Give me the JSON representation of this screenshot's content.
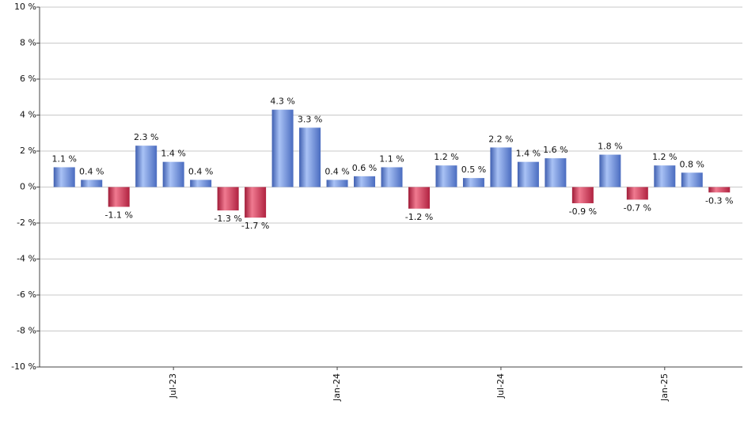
{
  "chart_data": {
    "type": "bar",
    "categories": [
      null,
      null,
      null,
      null,
      "Jul-23",
      null,
      null,
      null,
      null,
      null,
      "Jan-24",
      null,
      null,
      null,
      null,
      null,
      "Jul-24",
      null,
      null,
      null,
      null,
      null,
      "Jan-25",
      null,
      null
    ],
    "values": [
      1.1,
      0.4,
      -1.1,
      2.3,
      1.4,
      0.4,
      -1.3,
      -1.7,
      4.3,
      3.3,
      0.4,
      0.6,
      1.1,
      -1.2,
      1.2,
      0.5,
      2.2,
      1.4,
      1.6,
      -0.9,
      1.8,
      -0.7,
      1.2,
      0.8,
      -0.3
    ],
    "value_labels": [
      "1.1 %",
      "0.4 %",
      "-1.1 %",
      "2.3 %",
      "1.4 %",
      "0.4 %",
      "-1.3 %",
      "-1.7 %",
      "4.3 %",
      "3.3 %",
      "0.4 %",
      "0.6 %",
      "1.1 %",
      "-1.2 %",
      "1.2 %",
      "0.5 %",
      "2.2 %",
      "1.4 %",
      "1.6 %",
      "-0.9 %",
      "1.8 %",
      "-0.7 %",
      "1.2 %",
      "0.8 %",
      "-0.3 %"
    ],
    "color": "#6f8fd8",
    "negative_color": "#c8344f",
    "ylim": [
      -10,
      10
    ],
    "yticks": [
      {
        "value": -10,
        "label": "-10 %"
      },
      {
        "value": -8,
        "label": "-8 %"
      },
      {
        "value": -6,
        "label": "-6 %"
      },
      {
        "value": -4,
        "label": "-4 %"
      },
      {
        "value": -2,
        "label": "-2 %"
      },
      {
        "value": 0,
        "label": "0 %"
      },
      {
        "value": 2,
        "label": "2 %"
      },
      {
        "value": 4,
        "label": "4 %"
      },
      {
        "value": 6,
        "label": "6 %"
      },
      {
        "value": 8,
        "label": "8 %"
      },
      {
        "value": 10,
        "label": "10 %"
      }
    ],
    "grid": true
  }
}
